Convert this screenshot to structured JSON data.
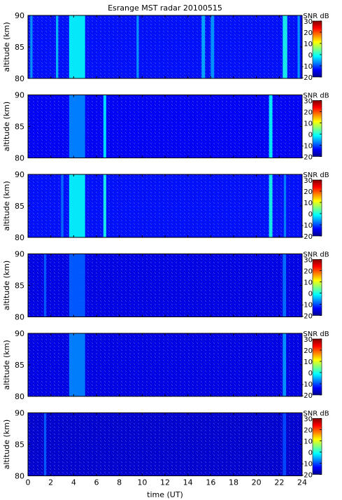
{
  "chart_data": {
    "type": "heatmap",
    "title": "Esrange MST radar 20100515",
    "xlabel": "time (UT)",
    "ylabel": "altitude (km)",
    "xlim": [
      0,
      24
    ],
    "ylim": [
      80,
      90
    ],
    "x_ticks": [
      "0",
      "2",
      "4",
      "6",
      "8",
      "10",
      "12",
      "14",
      "16",
      "18",
      "20",
      "22",
      "24"
    ],
    "y_ticks": [
      "80",
      "85",
      "90"
    ],
    "colorbar": {
      "label": "SNR dB",
      "range": [
        -20,
        30
      ],
      "ticks": [
        "30",
        "20",
        "10",
        "0",
        "-10",
        "-20"
      ],
      "colormap": "jet"
    },
    "panels": [
      {
        "panel": 1,
        "background_snr_db": -13,
        "enhancements": [
          {
            "t_start": 0.2,
            "t_end": 0.4,
            "snr_db": -6
          },
          {
            "t_start": 2.45,
            "t_end": 2.65,
            "snr_db": -4
          },
          {
            "t_start": 3.6,
            "t_end": 5.0,
            "snr_db": -1
          },
          {
            "t_start": 9.5,
            "t_end": 9.7,
            "snr_db": -6
          },
          {
            "t_start": 15.2,
            "t_end": 15.5,
            "snr_db": -5
          },
          {
            "t_start": 16.0,
            "t_end": 16.3,
            "snr_db": -6
          },
          {
            "t_start": 22.3,
            "t_end": 22.7,
            "snr_db": 0
          },
          {
            "t_start": 23.6,
            "t_end": 23.8,
            "snr_db": -6
          }
        ]
      },
      {
        "panel": 2,
        "background_snr_db": -14,
        "enhancements": [
          {
            "t_start": 3.6,
            "t_end": 5.0,
            "snr_db": -7
          },
          {
            "t_start": 6.6,
            "t_end": 6.85,
            "snr_db": -2
          },
          {
            "t_start": 21.1,
            "t_end": 21.4,
            "snr_db": -1
          }
        ]
      },
      {
        "panel": 3,
        "background_snr_db": -13,
        "enhancements": [
          {
            "t_start": 2.9,
            "t_end": 3.1,
            "snr_db": -8
          },
          {
            "t_start": 3.6,
            "t_end": 5.0,
            "snr_db": -1
          },
          {
            "t_start": 6.6,
            "t_end": 6.85,
            "snr_db": 0
          },
          {
            "t_start": 21.1,
            "t_end": 21.4,
            "snr_db": 0
          },
          {
            "t_start": 22.4,
            "t_end": 22.6,
            "snr_db": -7
          }
        ]
      },
      {
        "panel": 4,
        "background_snr_db": -15,
        "enhancements": [
          {
            "t_start": 1.4,
            "t_end": 1.6,
            "snr_db": -9
          },
          {
            "t_start": 3.6,
            "t_end": 5.0,
            "snr_db": -9
          },
          {
            "t_start": 22.3,
            "t_end": 22.6,
            "snr_db": -8
          }
        ]
      },
      {
        "panel": 5,
        "background_snr_db": -15,
        "enhancements": [
          {
            "t_start": 3.6,
            "t_end": 5.0,
            "snr_db": -7
          },
          {
            "t_start": 22.3,
            "t_end": 22.6,
            "snr_db": -6
          }
        ]
      },
      {
        "panel": 6,
        "background_snr_db": -16,
        "enhancements": [
          {
            "t_start": 1.4,
            "t_end": 1.6,
            "snr_db": -9
          },
          {
            "t_start": 22.3,
            "t_end": 22.6,
            "snr_db": -10
          }
        ]
      }
    ]
  }
}
